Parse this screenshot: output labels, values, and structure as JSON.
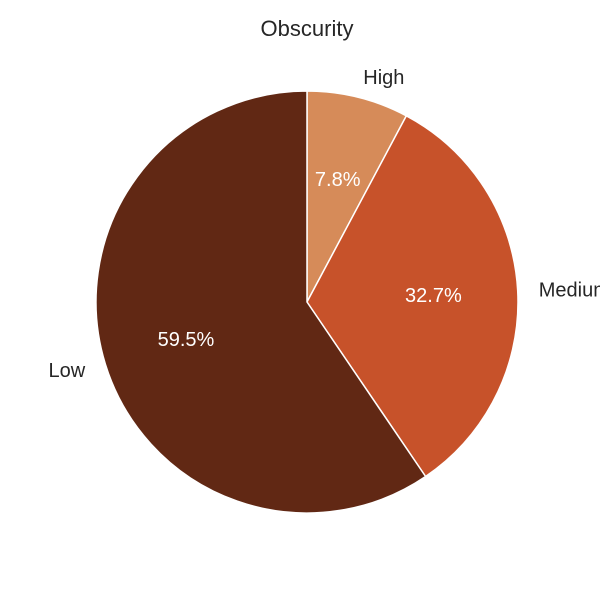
{
  "chart_data": {
    "type": "pie",
    "title": "Obscurity",
    "slices": [
      {
        "name": "High",
        "label": "High",
        "value": 7.8,
        "pct_label": "7.8%",
        "color": "#d68b59"
      },
      {
        "name": "Medium",
        "label": "Medium",
        "value": 32.7,
        "pct_label": "32.7%",
        "color": "#c7522a"
      },
      {
        "name": "Low",
        "label": "Low",
        "value": 59.5,
        "pct_label": "59.5%",
        "color": "#612814"
      }
    ],
    "start_angle_deg": 90,
    "direction": "clockwise",
    "legend": "none"
  }
}
